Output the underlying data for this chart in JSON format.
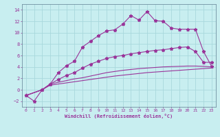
{
  "xlabel": "Windchill (Refroidissement éolien,°C)",
  "background_color": "#c8eef0",
  "grid_color": "#a8d8dc",
  "line_color": "#993399",
  "xlim": [
    -0.5,
    23.5
  ],
  "ylim": [
    -3.0,
    15.0
  ],
  "xticks": [
    0,
    1,
    2,
    3,
    4,
    5,
    6,
    7,
    8,
    9,
    10,
    11,
    12,
    13,
    14,
    15,
    16,
    17,
    18,
    19,
    20,
    21,
    22,
    23
  ],
  "yticks": [
    -2,
    0,
    2,
    4,
    6,
    8,
    10,
    12,
    14
  ],
  "line1_x": [
    0,
    1,
    2,
    3,
    4,
    5,
    6,
    7,
    8,
    9,
    10,
    11,
    12,
    13,
    14,
    15,
    16,
    17,
    18,
    19,
    20,
    21,
    22,
    23
  ],
  "line1_y": [
    -1.0,
    -2.0,
    0.0,
    1.0,
    3.0,
    4.2,
    5.0,
    7.5,
    8.5,
    9.5,
    10.3,
    10.5,
    11.5,
    13.0,
    12.2,
    13.7,
    12.1,
    12.0,
    10.8,
    10.6,
    10.6,
    10.6,
    6.7,
    4.1
  ],
  "line2_x": [
    0,
    2,
    3,
    4,
    5,
    6,
    7,
    8,
    9,
    10,
    11,
    12,
    13,
    14,
    15,
    16,
    17,
    18,
    19,
    20,
    21,
    22,
    23
  ],
  "line2_y": [
    -1.0,
    0.0,
    1.0,
    1.8,
    2.5,
    3.0,
    3.8,
    4.5,
    5.0,
    5.5,
    5.8,
    6.0,
    6.3,
    6.5,
    6.7,
    6.9,
    7.0,
    7.2,
    7.4,
    7.5,
    6.7,
    4.8,
    4.8
  ],
  "line3_x": [
    0,
    2,
    3,
    4,
    5,
    6,
    7,
    8,
    9,
    10,
    11,
    12,
    13,
    14,
    15,
    16,
    17,
    18,
    19,
    20,
    21,
    22,
    23
  ],
  "line3_y": [
    -1.0,
    0.0,
    1.0,
    1.3,
    1.6,
    1.9,
    2.1,
    2.4,
    2.7,
    3.0,
    3.2,
    3.4,
    3.55,
    3.7,
    3.8,
    3.9,
    4.0,
    4.05,
    4.1,
    4.15,
    4.15,
    4.1,
    4.0
  ],
  "line4_x": [
    0,
    2,
    3,
    4,
    5,
    6,
    7,
    8,
    9,
    10,
    11,
    12,
    13,
    14,
    15,
    16,
    17,
    18,
    19,
    20,
    21,
    22,
    23
  ],
  "line4_y": [
    -1.0,
    0.0,
    0.8,
    1.0,
    1.2,
    1.4,
    1.6,
    1.8,
    2.0,
    2.2,
    2.4,
    2.55,
    2.7,
    2.85,
    3.0,
    3.1,
    3.2,
    3.3,
    3.4,
    3.5,
    3.6,
    3.7,
    3.8
  ]
}
